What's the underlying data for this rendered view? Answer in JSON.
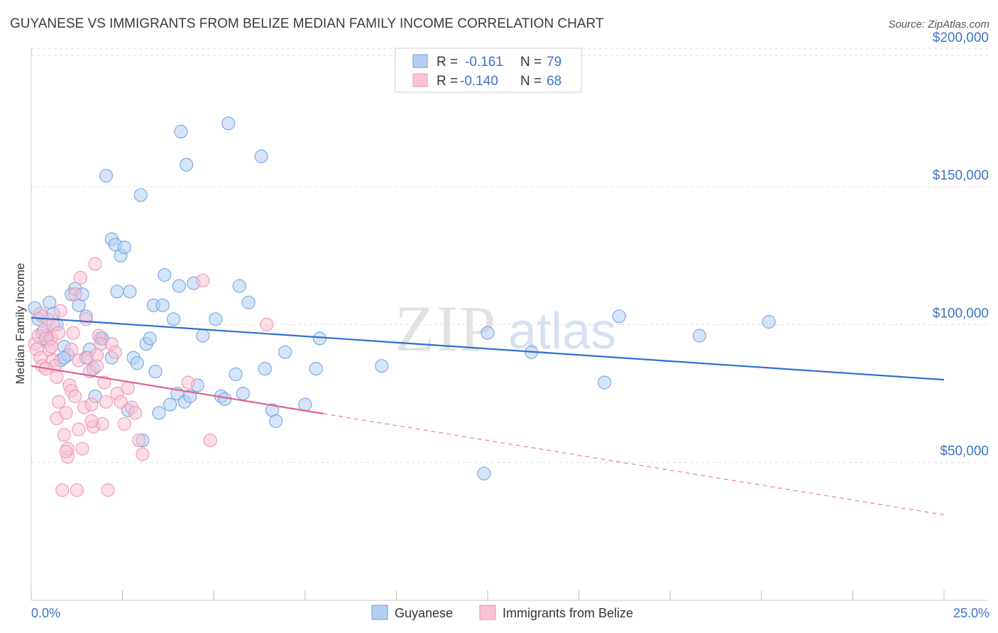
{
  "chart_data": {
    "type": "scatter",
    "title": "GUYANESE VS IMMIGRANTS FROM BELIZE MEDIAN FAMILY INCOME CORRELATION CHART",
    "source": "Source: ZipAtlas.com",
    "xlabel": "",
    "ylabel": "Median Family Income",
    "xlim": [
      0,
      25
    ],
    "ylim": [
      0,
      210000
    ],
    "x_tick_labels": {
      "min": "0.0%",
      "max": "25.0%"
    },
    "y_ticks": [
      {
        "value": 50000,
        "label": "$50,000"
      },
      {
        "value": 100000,
        "label": "$100,000"
      },
      {
        "value": 150000,
        "label": "$150,000"
      },
      {
        "value": 200000,
        "label": "$200,000"
      }
    ],
    "grid": true,
    "watermark": {
      "zip": "ZIP",
      "atlas": "atlas"
    },
    "legend": {
      "r_label": "R =",
      "n_label": "N =",
      "entries": [
        {
          "r": "-0.161",
          "n": "79"
        },
        {
          "r": "-0.140",
          "n": "68"
        }
      ]
    },
    "series": [
      {
        "name": "Guyanese",
        "color": "#6b9ee0",
        "fill": "#b3cff2",
        "line_color": "#2d6fd0",
        "trend": {
          "x0": 0,
          "y0": 102500,
          "x1": 25,
          "y1": 80000,
          "x_solid_end": 25
        },
        "points": [
          [
            0.1,
            106000
          ],
          [
            0.3,
            103000
          ],
          [
            0.5,
            108000
          ],
          [
            0.4,
            96000
          ],
          [
            0.7,
            100000
          ],
          [
            0.8,
            87000
          ],
          [
            0.9,
            92000
          ],
          [
            1.0,
            89000
          ],
          [
            1.1,
            111000
          ],
          [
            1.2,
            113000
          ],
          [
            1.3,
            107000
          ],
          [
            1.4,
            111000
          ],
          [
            1.5,
            103000
          ],
          [
            1.6,
            91000
          ],
          [
            1.7,
            84000
          ],
          [
            1.75,
            74000
          ],
          [
            1.9,
            95000
          ],
          [
            1.95,
            95000
          ],
          [
            2.05,
            154000
          ],
          [
            2.2,
            88000
          ],
          [
            2.2,
            131000
          ],
          [
            2.3,
            129000
          ],
          [
            2.35,
            112000
          ],
          [
            2.45,
            125000
          ],
          [
            2.55,
            128000
          ],
          [
            2.65,
            69000
          ],
          [
            2.7,
            112000
          ],
          [
            2.8,
            88000
          ],
          [
            2.9,
            86000
          ],
          [
            3.0,
            147000
          ],
          [
            3.05,
            58000
          ],
          [
            3.15,
            93000
          ],
          [
            3.25,
            95000
          ],
          [
            3.35,
            107000
          ],
          [
            3.4,
            83000
          ],
          [
            3.5,
            68000
          ],
          [
            3.6,
            107000
          ],
          [
            3.65,
            118000
          ],
          [
            3.8,
            71000
          ],
          [
            3.9,
            102000
          ],
          [
            4.0,
            75000
          ],
          [
            4.05,
            114000
          ],
          [
            4.1,
            170000
          ],
          [
            4.2,
            72000
          ],
          [
            4.25,
            158000
          ],
          [
            4.35,
            74000
          ],
          [
            4.45,
            115000
          ],
          [
            4.55,
            78000
          ],
          [
            4.7,
            96000
          ],
          [
            5.05,
            102000
          ],
          [
            5.2,
            74000
          ],
          [
            5.3,
            73000
          ],
          [
            5.4,
            173000
          ],
          [
            5.6,
            82000
          ],
          [
            5.7,
            114000
          ],
          [
            5.8,
            75000
          ],
          [
            5.95,
            108000
          ],
          [
            6.3,
            161000
          ],
          [
            6.4,
            84000
          ],
          [
            6.6,
            69000
          ],
          [
            6.7,
            65000
          ],
          [
            6.95,
            90000
          ],
          [
            7.5,
            71000
          ],
          [
            7.8,
            84000
          ],
          [
            7.9,
            95000
          ],
          [
            9.6,
            85000
          ],
          [
            12.4,
            46000
          ],
          [
            12.5,
            97000
          ],
          [
            13.7,
            90000
          ],
          [
            15.7,
            79000
          ],
          [
            16.1,
            103000
          ],
          [
            18.3,
            96000
          ],
          [
            20.2,
            101000
          ],
          [
            0.3,
            97000
          ],
          [
            0.6,
            104000
          ],
          [
            0.2,
            102000
          ],
          [
            1.5,
            88000
          ],
          [
            0.9,
            88000
          ],
          [
            0.45,
            94000
          ]
        ]
      },
      {
        "name": "Immigrants from Belize",
        "color": "#ee8fb0",
        "fill": "#f8c3d6",
        "line_color": "#e0628e",
        "trend": {
          "x0": 0,
          "y0": 85000,
          "x1": 25,
          "y1": 31000,
          "x_solid_end": 8.0
        },
        "points": [
          [
            0.1,
            93000
          ],
          [
            0.15,
            91000
          ],
          [
            0.2,
            96000
          ],
          [
            0.25,
            88000
          ],
          [
            0.3,
            85000
          ],
          [
            0.35,
            98000
          ],
          [
            0.4,
            95000
          ],
          [
            0.45,
            102000
          ],
          [
            0.5,
            91000
          ],
          [
            0.55,
            95000
          ],
          [
            0.6,
            87000
          ],
          [
            0.6,
            100000
          ],
          [
            0.65,
            85000
          ],
          [
            0.7,
            81000
          ],
          [
            0.75,
            97000
          ],
          [
            0.75,
            72000
          ],
          [
            0.7,
            66000
          ],
          [
            0.8,
            105000
          ],
          [
            0.85,
            40000
          ],
          [
            0.9,
            60000
          ],
          [
            0.95,
            68000
          ],
          [
            1.0,
            52000
          ],
          [
            1.0,
            55000
          ],
          [
            1.05,
            78000
          ],
          [
            1.1,
            91000
          ],
          [
            1.1,
            76000
          ],
          [
            1.15,
            97000
          ],
          [
            1.2,
            74000
          ],
          [
            1.2,
            111000
          ],
          [
            1.25,
            40000
          ],
          [
            1.3,
            87000
          ],
          [
            1.35,
            117000
          ],
          [
            1.4,
            55000
          ],
          [
            1.45,
            70000
          ],
          [
            1.5,
            102000
          ],
          [
            1.55,
            88000
          ],
          [
            1.6,
            83000
          ],
          [
            1.65,
            71000
          ],
          [
            1.7,
            63000
          ],
          [
            1.75,
            122000
          ],
          [
            1.8,
            85000
          ],
          [
            1.85,
            96000
          ],
          [
            1.9,
            93000
          ],
          [
            1.95,
            64000
          ],
          [
            2.0,
            79000
          ],
          [
            2.05,
            72000
          ],
          [
            2.1,
            40000
          ],
          [
            2.2,
            93000
          ],
          [
            2.3,
            90000
          ],
          [
            2.35,
            75000
          ],
          [
            2.45,
            72000
          ],
          [
            2.55,
            64000
          ],
          [
            2.65,
            77000
          ],
          [
            2.75,
            70000
          ],
          [
            2.95,
            58000
          ],
          [
            3.05,
            53000
          ],
          [
            4.3,
            79000
          ],
          [
            4.7,
            116000
          ],
          [
            4.9,
            58000
          ],
          [
            6.45,
            100000
          ],
          [
            0.25,
            104000
          ],
          [
            0.4,
            84000
          ],
          [
            0.55,
            92000
          ],
          [
            1.3,
            62000
          ],
          [
            1.65,
            65000
          ],
          [
            2.85,
            68000
          ],
          [
            0.95,
            54000
          ],
          [
            1.8,
            89000
          ]
        ]
      }
    ]
  }
}
